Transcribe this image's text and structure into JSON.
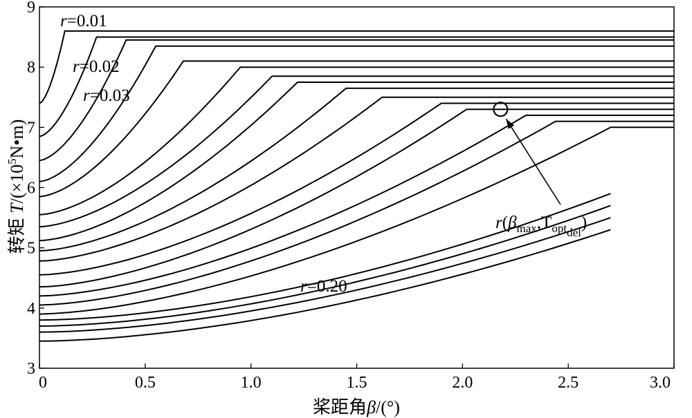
{
  "chart_data": {
    "type": "line",
    "xlabel": {
      "cn": "桨距角",
      "sym": "β",
      "unit": "/(°)"
    },
    "ylabel": {
      "cn": "转矩",
      "sym": "T",
      "unit_pre": "/(×10",
      "exp": "5",
      "unit_post": "N•m)"
    },
    "xlim": [
      0,
      3.0
    ],
    "ylim": [
      3,
      9
    ],
    "xticks": [
      "0",
      "0.5",
      "1.0",
      "1.5",
      "2.0",
      "2.5",
      "3.0"
    ],
    "yticks": [
      "3",
      "4",
      "5",
      "6",
      "7",
      "8",
      "9"
    ],
    "grid": false,
    "curve_family": {
      "start_T": [
        8.6,
        8.5,
        8.45,
        8.35,
        8.1,
        8.0,
        7.85,
        7.75,
        7.65,
        7.5,
        7.4,
        7.3,
        7.2,
        7.1,
        7.0
      ],
      "knee_beta": [
        0.12,
        0.27,
        0.41,
        0.55,
        0.68,
        0.95,
        1.1,
        1.22,
        1.45,
        1.62,
        1.9,
        2.02,
        2.3,
        2.44,
        2.7
      ],
      "end_T": [
        7.4,
        6.85,
        6.45,
        6.1,
        5.85,
        5.55,
        5.35,
        5.12,
        4.95,
        4.78,
        4.55,
        4.35,
        4.2,
        4.05,
        3.9
      ],
      "extra_low_curves_end_T": [
        3.8,
        3.7,
        3.6,
        3.45
      ]
    },
    "annotations": {
      "r_top": {
        "sym": "r",
        "text": "=0.01"
      },
      "r_second": {
        "sym": "r",
        "text": "=0.02"
      },
      "r_third": {
        "sym": "r",
        "text": "=0.03"
      },
      "r_bottom": {
        "sym": "r",
        "text": "=0.20"
      },
      "marker": {
        "beta": 2.18,
        "T": 7.3,
        "label_r": "r",
        "label_open": "(",
        "label_beta": "β",
        "label_beta_sub": "max",
        "label_comma": ",",
        "label_T": "T",
        "label_T_sub": "opt",
        "label_T_subsub": "del",
        "label_close": ")"
      }
    }
  }
}
